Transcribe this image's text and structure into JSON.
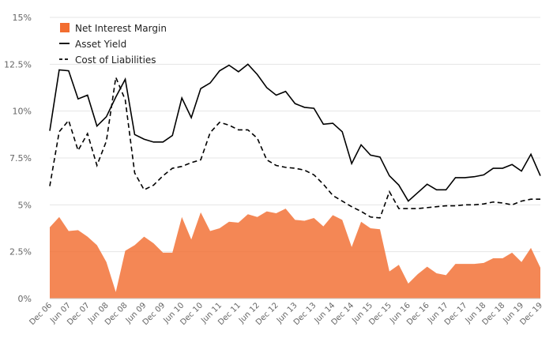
{
  "chart_data": {
    "type": "area",
    "x": [
      "Dec 06",
      "Mar 07",
      "Jun 07",
      "Sep 07",
      "Dec 07",
      "Mar 08",
      "Jun 08",
      "Sep 08",
      "Dec 08",
      "Mar 09",
      "Jun 09",
      "Sep 09",
      "Dec 09",
      "Mar 10",
      "Jun 10",
      "Sep 10",
      "Dec 10",
      "Mar 11",
      "Jun 11",
      "Sep 11",
      "Dec 11",
      "Mar 12",
      "Jun 12",
      "Sep 12",
      "Dec 12",
      "Mar 13",
      "Jun 13",
      "Sep 13",
      "Dec 13",
      "Mar 14",
      "Jun 14",
      "Sep 14",
      "Dec 14",
      "Mar 15",
      "Jun 15",
      "Sep 15",
      "Dec 15",
      "Mar 16",
      "Jun 16",
      "Sep 16",
      "Dec 16",
      "Mar 17",
      "Jun 17",
      "Sep 17",
      "Dec 17",
      "Mar 18",
      "Jun 18",
      "Sep 18",
      "Dec 18",
      "Mar 19",
      "Jun 19",
      "Sep 19",
      "Dec 19"
    ],
    "x_tick_labels": [
      "Dec 06",
      "Jun 07",
      "Dec 07",
      "Jun 08",
      "Dec 08",
      "Jun 09",
      "Dec 09",
      "Jun 10",
      "Dec 10",
      "Jun 11",
      "Dec 11",
      "Jun 12",
      "Dec 12",
      "Jun 13",
      "Dec 13",
      "Jun 14",
      "Dec 14",
      "Jun 15",
      "Dec 15",
      "Jun 16",
      "Dec 16",
      "Jun 17",
      "Dec 17",
      "Jun 18",
      "Dec 18",
      "Jun 19",
      "Dec 19"
    ],
    "y_ticks": [
      0,
      2.5,
      5,
      7.5,
      10,
      12.5,
      15
    ],
    "y_tick_labels": [
      "0%",
      "2.5%",
      "5%",
      "7.5%",
      "10%",
      "12.5%",
      "15%"
    ],
    "ylim": [
      0,
      15
    ],
    "grid": true,
    "legend_position": "top-left",
    "series": [
      {
        "name": "Net Interest Margin",
        "style": "area",
        "color": "#f26d30",
        "values": [
          3.8,
          4.35,
          3.6,
          3.65,
          3.3,
          2.85,
          1.95,
          0.35,
          2.55,
          2.85,
          3.3,
          2.95,
          2.45,
          2.45,
          4.35,
          3.15,
          4.6,
          3.6,
          3.75,
          4.1,
          4.05,
          4.5,
          4.35,
          4.65,
          4.55,
          4.8,
          4.2,
          4.15,
          4.3,
          3.85,
          4.45,
          4.2,
          2.75,
          4.1,
          3.75,
          3.7,
          1.45,
          1.8,
          0.8,
          1.3,
          1.7,
          1.35,
          1.25,
          1.85,
          1.85,
          1.85,
          1.9,
          2.15,
          2.15,
          2.45,
          1.95,
          2.7,
          1.65
        ]
      },
      {
        "name": "Asset Yield",
        "style": "solid",
        "color": "#000000",
        "values": [
          8.95,
          12.2,
          12.15,
          10.65,
          10.85,
          9.2,
          9.7,
          10.75,
          11.7,
          8.75,
          8.5,
          8.35,
          8.35,
          8.7,
          10.7,
          9.65,
          11.2,
          11.5,
          12.15,
          12.45,
          12.1,
          12.5,
          11.95,
          11.25,
          10.85,
          11.05,
          10.4,
          10.2,
          10.15,
          9.3,
          9.35,
          8.9,
          7.2,
          8.2,
          7.65,
          7.55,
          6.55,
          6.05,
          5.2,
          5.65,
          6.1,
          5.8,
          5.8,
          6.45,
          6.45,
          6.5,
          6.6,
          6.95,
          6.95,
          7.15,
          6.8,
          7.7,
          6.55
        ]
      },
      {
        "name": "Cost of Liabilities",
        "style": "dashed",
        "color": "#000000",
        "values": [
          6.0,
          8.9,
          9.5,
          7.9,
          8.8,
          7.1,
          8.4,
          11.8,
          10.6,
          6.7,
          5.8,
          6.05,
          6.55,
          6.95,
          7.05,
          7.25,
          7.4,
          8.85,
          9.4,
          9.25,
          9.0,
          9.0,
          8.55,
          7.4,
          7.1,
          7.0,
          6.95,
          6.85,
          6.6,
          6.1,
          5.5,
          5.2,
          4.9,
          4.65,
          4.35,
          4.3,
          5.7,
          4.8,
          4.8,
          4.8,
          4.85,
          4.9,
          4.95,
          4.95,
          5.0,
          5.0,
          5.05,
          5.15,
          5.1,
          5.0,
          5.2,
          5.3,
          5.3
        ]
      }
    ]
  }
}
